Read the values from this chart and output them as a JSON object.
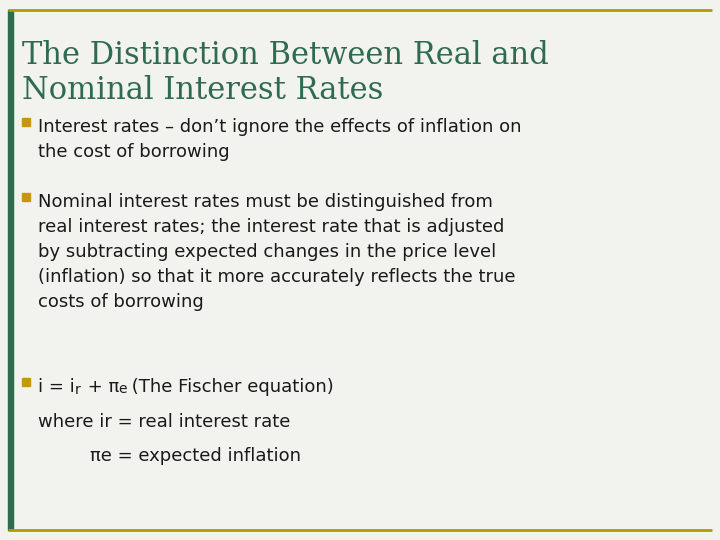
{
  "title_line1": "The Distinction Between Real and",
  "title_line2": "Nominal Interest Rates",
  "title_color": "#2E6B4F",
  "background_color": "#F2F2EE",
  "border_color": "#B8960C",
  "bullet_color": "#C8960C",
  "text_color": "#1A1A1A",
  "bullet1": "Interest rates – don’t ignore the effects of inflation on\nthe cost of borrowing",
  "bullet2": "Nominal interest rates must be distinguished from\nreal interest rates; the interest rate that is adjusted\nby subtracting expected changes in the price level\n(inflation) so that it more accurately reflects the true\ncosts of borrowing",
  "line4": "where ir = real interest rate",
  "line5": "πe = expected inflation",
  "font_size_title": 22,
  "font_size_body": 13,
  "left_bar_color": "#2E6B4F",
  "left_bar_width": 0.008
}
